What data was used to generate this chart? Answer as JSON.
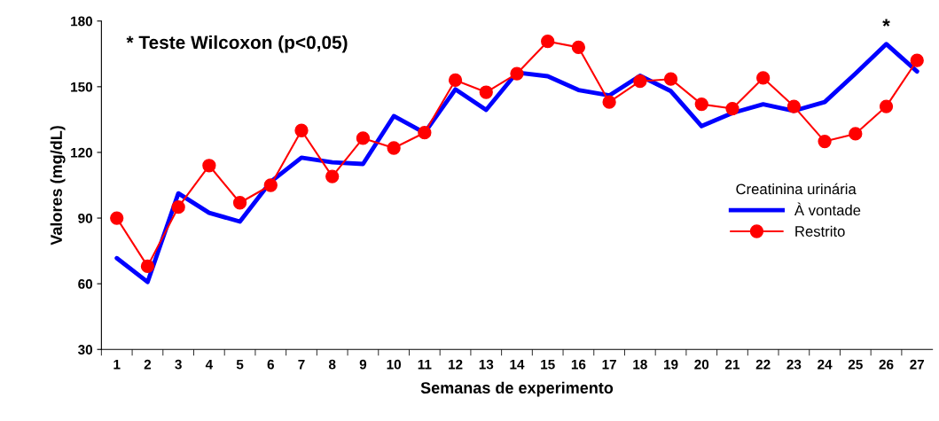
{
  "chart_data": {
    "type": "line",
    "xlabel": "Semanas de experimento",
    "ylabel": "Valores (mg/dL)",
    "categories": [
      "1",
      "2",
      "3",
      "4",
      "5",
      "6",
      "7",
      "8",
      "9",
      "10",
      "11",
      "12",
      "13",
      "14",
      "15",
      "16",
      "17",
      "18",
      "19",
      "20",
      "21",
      "22",
      "23",
      "24",
      "25",
      "26",
      "27"
    ],
    "series": [
      {
        "name": "À vontade",
        "color": "#0000ff",
        "marker": "none",
        "values": [
          71.7,
          60.8,
          101.3,
          92.4,
          88.4,
          106.6,
          117.6,
          115.5,
          114.7,
          136.6,
          128.9,
          148.8,
          139.4,
          156.5,
          154.8,
          148.5,
          146,
          155,
          148,
          132,
          138,
          142,
          139,
          143,
          156,
          169.5,
          157
        ]
      },
      {
        "name": "Restrito",
        "color": "#ff0000",
        "marker": "circle",
        "values": [
          90,
          68,
          95,
          114,
          97,
          105,
          130,
          109,
          126.5,
          122,
          129,
          153,
          147.5,
          156,
          170.7,
          168,
          143,
          152.5,
          153.5,
          142,
          140,
          154,
          141,
          125,
          128.5,
          141,
          162
        ]
      }
    ],
    "ylim": [
      30,
      180
    ],
    "yticks": [
      30,
      60,
      90,
      120,
      150,
      180
    ],
    "grid": false,
    "legend": "right",
    "legend_title": "Creatinina urinária",
    "annotations": [
      "* Teste Wilcoxon (p<0,05)",
      {
        "text": "*",
        "x": "26",
        "y": 169.5
      }
    ]
  }
}
